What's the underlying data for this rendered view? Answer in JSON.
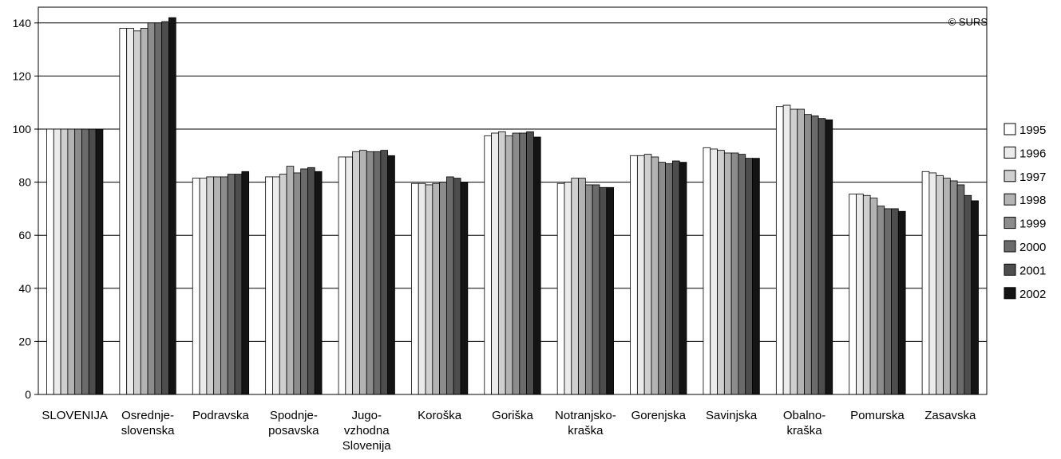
{
  "chart_data": {
    "type": "bar",
    "title": "",
    "xlabel": "",
    "ylabel": "",
    "ylim": [
      0,
      140
    ],
    "yticks": [
      0,
      20,
      40,
      60,
      80,
      100,
      120,
      140
    ],
    "grid": true,
    "legend_position": "right",
    "copyright": "© SURS",
    "categories": [
      [
        "SLOVENIJA"
      ],
      [
        "Osrednje-",
        "slovenska"
      ],
      [
        "Podravska"
      ],
      [
        "Spodnje-",
        "posavska"
      ],
      [
        "Jugo-",
        "vzhodna",
        "Slovenija"
      ],
      [
        "Koroška"
      ],
      [
        "Goriška"
      ],
      [
        "Notranjsko-",
        "kraška"
      ],
      [
        "Gorenjska"
      ],
      [
        "Savinjska"
      ],
      [
        "Obalno-",
        "kraška"
      ],
      [
        "Pomurska"
      ],
      [
        "Zasavska"
      ]
    ],
    "series": [
      {
        "name": "1995",
        "color": "#ffffff",
        "values": [
          100,
          138,
          81.5,
          82,
          89.5,
          79.5,
          97.5,
          79.5,
          90,
          93,
          108.5,
          75.5,
          84
        ]
      },
      {
        "name": "1996",
        "color": "#ebebeb",
        "values": [
          100,
          138,
          81.5,
          82,
          89.5,
          79.5,
          98.5,
          80,
          90,
          92.5,
          109,
          75.5,
          83.5
        ]
      },
      {
        "name": "1997",
        "color": "#cfcfcf",
        "values": [
          100,
          137,
          82,
          83,
          91.5,
          79,
          99,
          81.5,
          90.5,
          92,
          107.5,
          75,
          82.5
        ]
      },
      {
        "name": "1998",
        "color": "#b3b3b3",
        "values": [
          100,
          138,
          82,
          86,
          92,
          79.5,
          97.5,
          81.5,
          89.5,
          91,
          107.5,
          74,
          81.5
        ]
      },
      {
        "name": "1999",
        "color": "#8c8c8c",
        "values": [
          100,
          140,
          82,
          83.5,
          91.5,
          80,
          98.5,
          79,
          87.5,
          91,
          105.5,
          71,
          80.5
        ]
      },
      {
        "name": "2000",
        "color": "#6b6b6b",
        "values": [
          100,
          140,
          83,
          85,
          91.5,
          82,
          98.5,
          79,
          87,
          90.5,
          105,
          70,
          79
        ]
      },
      {
        "name": "2001",
        "color": "#4d4d4d",
        "values": [
          100,
          140.5,
          83,
          85.5,
          92,
          81.5,
          99,
          78,
          88,
          89,
          104,
          70,
          75
        ]
      },
      {
        "name": "2002",
        "color": "#141414",
        "values": [
          100,
          142,
          84,
          84,
          90,
          80,
          97,
          78,
          87.5,
          89,
          103.5,
          69,
          73
        ]
      }
    ]
  }
}
